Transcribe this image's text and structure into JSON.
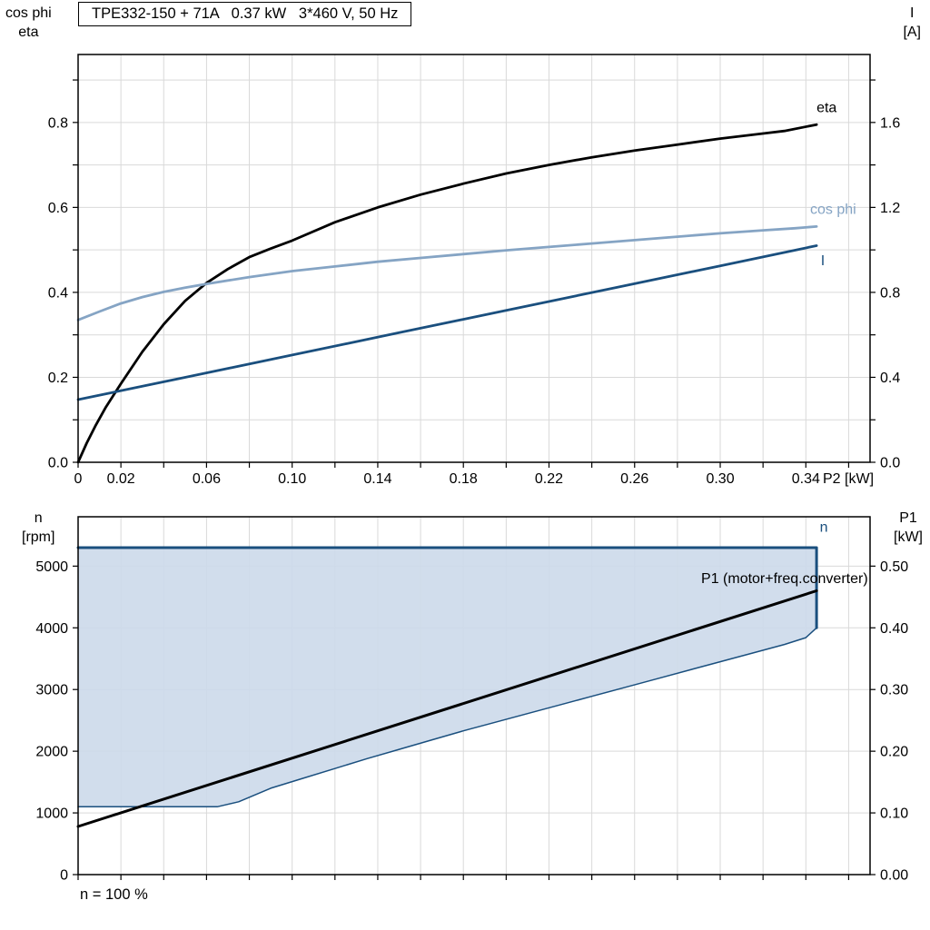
{
  "chart_data": [
    {
      "type": "line",
      "title": "TPE332-150 + 71A   0.37 kW   3*460 V, 50 Hz",
      "x": {
        "min": 0,
        "max": 0.37,
        "grid_step": 0.02,
        "label": "P2 [kW]",
        "ticks": [
          {
            "v": 0,
            "label": "0"
          },
          {
            "v": 0.02,
            "label": "0.02"
          },
          {
            "v": 0.06,
            "label": "0.06"
          },
          {
            "v": 0.1,
            "label": "0.10"
          },
          {
            "v": 0.14,
            "label": "0.14"
          },
          {
            "v": 0.18,
            "label": "0.18"
          },
          {
            "v": 0.22,
            "label": "0.22"
          },
          {
            "v": 0.26,
            "label": "0.26"
          },
          {
            "v": 0.3,
            "label": "0.30"
          },
          {
            "v": 0.34,
            "label": "0.34"
          }
        ]
      },
      "y_left": {
        "min": 0,
        "max": 0.96,
        "grid_step": 0.1,
        "label_lines": [
          "cos phi",
          "eta"
        ],
        "ticks": [
          {
            "v": 0.0,
            "label": "0.0"
          },
          {
            "v": 0.2,
            "label": "0.2"
          },
          {
            "v": 0.4,
            "label": "0.4"
          },
          {
            "v": 0.6,
            "label": "0.6"
          },
          {
            "v": 0.8,
            "label": "0.8"
          }
        ]
      },
      "y_right": {
        "min": 0,
        "max": 1.92,
        "grid_step": 0.2,
        "label_lines": [
          "I",
          "[A]"
        ],
        "ticks": [
          {
            "v": 0.0,
            "label": "0.0"
          },
          {
            "v": 0.4,
            "label": "0.4"
          },
          {
            "v": 0.8,
            "label": "0.8"
          },
          {
            "v": 1.2,
            "label": "1.2"
          },
          {
            "v": 1.6,
            "label": "1.6"
          }
        ]
      },
      "series": [
        {
          "name": "eta",
          "axis": "left",
          "color": "#000000",
          "width": 2.8,
          "points": [
            [
              0,
              0
            ],
            [
              0.004,
              0.045
            ],
            [
              0.008,
              0.085
            ],
            [
              0.013,
              0.13
            ],
            [
              0.02,
              0.185
            ],
            [
              0.03,
              0.26
            ],
            [
              0.04,
              0.325
            ],
            [
              0.05,
              0.38
            ],
            [
              0.06,
              0.422
            ],
            [
              0.07,
              0.455
            ],
            [
              0.08,
              0.483
            ],
            [
              0.09,
              0.503
            ],
            [
              0.1,
              0.522
            ],
            [
              0.12,
              0.565
            ],
            [
              0.14,
              0.6
            ],
            [
              0.16,
              0.63
            ],
            [
              0.18,
              0.656
            ],
            [
              0.2,
              0.68
            ],
            [
              0.22,
              0.7
            ],
            [
              0.24,
              0.718
            ],
            [
              0.26,
              0.734
            ],
            [
              0.28,
              0.748
            ],
            [
              0.3,
              0.762
            ],
            [
              0.32,
              0.774
            ],
            [
              0.33,
              0.78
            ],
            [
              0.345,
              0.795
            ]
          ]
        },
        {
          "name": "cos-phi",
          "axis": "left",
          "color": "#85a4c4",
          "width": 2.8,
          "points": [
            [
              0,
              0.335
            ],
            [
              0.01,
              0.355
            ],
            [
              0.02,
              0.374
            ],
            [
              0.03,
              0.389
            ],
            [
              0.04,
              0.401
            ],
            [
              0.05,
              0.411
            ],
            [
              0.06,
              0.42
            ],
            [
              0.08,
              0.436
            ],
            [
              0.1,
              0.45
            ],
            [
              0.12,
              0.461
            ],
            [
              0.14,
              0.472
            ],
            [
              0.16,
              0.481
            ],
            [
              0.18,
              0.49
            ],
            [
              0.2,
              0.499
            ],
            [
              0.22,
              0.507
            ],
            [
              0.24,
              0.515
            ],
            [
              0.26,
              0.523
            ],
            [
              0.28,
              0.531
            ],
            [
              0.3,
              0.539
            ],
            [
              0.32,
              0.546
            ],
            [
              0.335,
              0.551
            ],
            [
              0.345,
              0.555
            ]
          ]
        },
        {
          "name": "current",
          "axis": "right",
          "color": "#1a4f7e",
          "width": 2.8,
          "points": [
            [
              0,
              0.295
            ],
            [
              0.05,
              0.4
            ],
            [
              0.1,
              0.505
            ],
            [
              0.15,
              0.61
            ],
            [
              0.2,
              0.715
            ],
            [
              0.25,
              0.82
            ],
            [
              0.3,
              0.925
            ],
            [
              0.345,
              1.02
            ]
          ]
        }
      ],
      "curve_labels": [
        {
          "text": "eta",
          "x": 0.345,
          "y": 0.835,
          "axis": "left",
          "color": "#000000",
          "anchor": "start"
        },
        {
          "text": "cos phi",
          "x": 0.342,
          "y": 0.595,
          "axis": "left",
          "color": "#85a4c4",
          "anchor": "start"
        },
        {
          "text": "I",
          "x": 0.347,
          "y": 0.475,
          "axis": "left",
          "color": "#1a4f7e",
          "anchor": "start"
        }
      ]
    },
    {
      "type": "area+line",
      "x": {
        "min": 0,
        "max": 0.37,
        "grid_step": 0.02,
        "label": "",
        "ticks": []
      },
      "y_left": {
        "min": 0,
        "max": 5800,
        "grid_step": 1000,
        "label_lines": [
          "n",
          "[rpm]"
        ],
        "ticks": [
          {
            "v": 0,
            "label": "0"
          },
          {
            "v": 1000,
            "label": "1000"
          },
          {
            "v": 2000,
            "label": "2000"
          },
          {
            "v": 3000,
            "label": "3000"
          },
          {
            "v": 4000,
            "label": "4000"
          },
          {
            "v": 5000,
            "label": "5000"
          }
        ]
      },
      "y_right": {
        "min": 0,
        "max": 0.58,
        "grid_step": 0.1,
        "label_lines": [
          "P1",
          "[kW]"
        ],
        "ticks": [
          {
            "v": 0.0,
            "label": "0.00"
          },
          {
            "v": 0.1,
            "label": "0.10"
          },
          {
            "v": 0.2,
            "label": "0.20"
          },
          {
            "v": 0.3,
            "label": "0.30"
          },
          {
            "v": 0.4,
            "label": "0.40"
          },
          {
            "v": 0.5,
            "label": "0.50"
          }
        ]
      },
      "area": {
        "fill": "#ccd9ea",
        "opacity": 0.9,
        "upper": [
          [
            0,
            5300
          ],
          [
            0.345,
            5300
          ]
        ],
        "lower": [
          [
            0,
            1100
          ],
          [
            0.065,
            1100
          ],
          [
            0.075,
            1180
          ],
          [
            0.09,
            1400
          ],
          [
            0.105,
            1560
          ],
          [
            0.12,
            1720
          ],
          [
            0.135,
            1880
          ],
          [
            0.15,
            2030
          ],
          [
            0.165,
            2180
          ],
          [
            0.18,
            2330
          ],
          [
            0.195,
            2470
          ],
          [
            0.21,
            2610
          ],
          [
            0.225,
            2750
          ],
          [
            0.24,
            2890
          ],
          [
            0.255,
            3030
          ],
          [
            0.27,
            3170
          ],
          [
            0.285,
            3310
          ],
          [
            0.3,
            3450
          ],
          [
            0.315,
            3590
          ],
          [
            0.33,
            3730
          ],
          [
            0.34,
            3840
          ],
          [
            0.345,
            4000
          ]
        ]
      },
      "series": [
        {
          "name": "n-min-limit",
          "axis": "left",
          "color": "#1a4f7e",
          "width": 1.5,
          "points": [
            [
              0,
              1100
            ],
            [
              0.065,
              1100
            ],
            [
              0.075,
              1180
            ],
            [
              0.09,
              1400
            ],
            [
              0.105,
              1560
            ],
            [
              0.12,
              1720
            ],
            [
              0.135,
              1880
            ],
            [
              0.15,
              2030
            ],
            [
              0.165,
              2180
            ],
            [
              0.18,
              2330
            ],
            [
              0.195,
              2470
            ],
            [
              0.21,
              2610
            ],
            [
              0.225,
              2750
            ],
            [
              0.24,
              2890
            ],
            [
              0.255,
              3030
            ],
            [
              0.27,
              3170
            ],
            [
              0.285,
              3310
            ],
            [
              0.3,
              3450
            ],
            [
              0.315,
              3590
            ],
            [
              0.33,
              3730
            ],
            [
              0.34,
              3840
            ],
            [
              0.345,
              4000
            ]
          ]
        },
        {
          "name": "n-max",
          "axis": "left",
          "color": "#1a4f7e",
          "width": 3,
          "points": [
            [
              0,
              5300
            ],
            [
              0.345,
              5300
            ],
            [
              0.345,
              4000
            ]
          ]
        },
        {
          "name": "P1-motor-freq-converter",
          "axis": "right",
          "color": "#000000",
          "width": 3,
          "points": [
            [
              0,
              0.078
            ],
            [
              0.345,
              0.46
            ]
          ]
        }
      ],
      "curve_labels": [
        {
          "text": "n",
          "x": 0.3465,
          "y": 5630,
          "axis": "left",
          "color": "#1a4f7e",
          "anchor": "start"
        },
        {
          "text": "P1 (motor+freq.converter)",
          "x": 0.369,
          "y": 4800,
          "axis": "left",
          "color": "#000000",
          "anchor": "end"
        }
      ],
      "footnote": "n = 100 %"
    }
  ],
  "colors": {
    "dark_blue": "#1a4f7e",
    "light_blue": "#85a4c4",
    "area_fill": "#ccd9ea",
    "grid": "#d9d9d9",
    "black": "#000000"
  }
}
